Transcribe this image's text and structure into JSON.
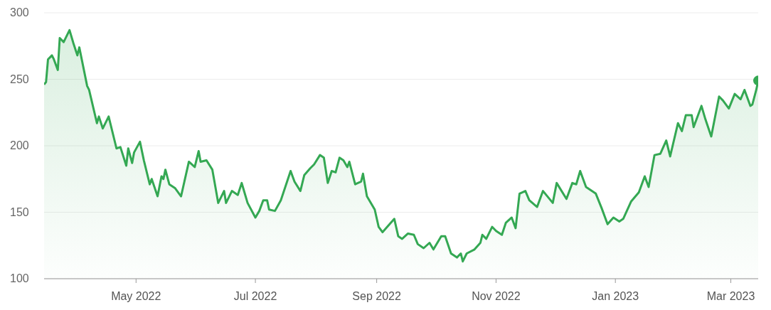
{
  "chart_data": {
    "type": "area",
    "xlim": [
      "2022-03-15",
      "2023-03-15"
    ],
    "xticks": [
      {
        "value": "2022-05-01",
        "label": "May 2022"
      },
      {
        "value": "2022-07-01",
        "label": "Jul 2022"
      },
      {
        "value": "2022-09-01",
        "label": "Sep 2022"
      },
      {
        "value": "2022-11-01",
        "label": "Nov 2022"
      },
      {
        "value": "2023-01-01",
        "label": "Jan 2023"
      },
      {
        "value": "2023-03-01",
        "label": "Mar 2023"
      }
    ],
    "ylim": [
      100,
      300
    ],
    "yticks": [
      100,
      150,
      200,
      250,
      300
    ],
    "grid": "y",
    "series": [
      {
        "color": "#34a853",
        "x": [
          "2022-03-15",
          "2022-03-16",
          "2022-03-17",
          "2022-03-19",
          "2022-03-20",
          "2022-03-22",
          "2022-03-23",
          "2022-03-25",
          "2022-03-28",
          "2022-03-30",
          "2022-04-01",
          "2022-04-02",
          "2022-04-06",
          "2022-04-07",
          "2022-04-11",
          "2022-04-12",
          "2022-04-14",
          "2022-04-17",
          "2022-04-21",
          "2022-04-23",
          "2022-04-26",
          "2022-04-27",
          "2022-04-29",
          "2022-04-30",
          "2022-05-03",
          "2022-05-05",
          "2022-05-08",
          "2022-05-09",
          "2022-05-12",
          "2022-05-14",
          "2022-05-15",
          "2022-05-16",
          "2022-05-18",
          "2022-05-21",
          "2022-05-24",
          "2022-05-28",
          "2022-05-31",
          "2022-06-02",
          "2022-06-03",
          "2022-06-06",
          "2022-06-09",
          "2022-06-12",
          "2022-06-15",
          "2022-06-16",
          "2022-06-19",
          "2022-06-22",
          "2022-06-24",
          "2022-06-25",
          "2022-06-27",
          "2022-07-01",
          "2022-07-03",
          "2022-07-05",
          "2022-07-07",
          "2022-07-08",
          "2022-07-11",
          "2022-07-14",
          "2022-07-19",
          "2022-07-21",
          "2022-07-24",
          "2022-07-26",
          "2022-07-29",
          "2022-07-31",
          "2022-08-03",
          "2022-08-05",
          "2022-08-07",
          "2022-08-09",
          "2022-08-11",
          "2022-08-13",
          "2022-08-15",
          "2022-08-17",
          "2022-08-18",
          "2022-08-21",
          "2022-08-24",
          "2022-08-25",
          "2022-08-27",
          "2022-08-31",
          "2022-09-02",
          "2022-09-04",
          "2022-09-10",
          "2022-09-12",
          "2022-09-14",
          "2022-09-17",
          "2022-09-20",
          "2022-09-22",
          "2022-09-25",
          "2022-09-28",
          "2022-09-30",
          "2022-10-04",
          "2022-10-06",
          "2022-10-09",
          "2022-10-12",
          "2022-10-14",
          "2022-10-15",
          "2022-10-17",
          "2022-10-21",
          "2022-10-24",
          "2022-10-25",
          "2022-10-27",
          "2022-10-30",
          "2022-11-01",
          "2022-11-04",
          "2022-11-06",
          "2022-11-09",
          "2022-11-11",
          "2022-11-13",
          "2022-11-16",
          "2022-11-18",
          "2022-11-22",
          "2022-11-25",
          "2022-11-30",
          "2022-12-02",
          "2022-12-07",
          "2022-12-10",
          "2022-12-12",
          "2022-12-14",
          "2022-12-17",
          "2022-12-22",
          "2022-12-25",
          "2022-12-28",
          "2022-12-31",
          "2023-01-03",
          "2023-01-05",
          "2023-01-09",
          "2023-01-13",
          "2023-01-16",
          "2023-01-18",
          "2023-01-21",
          "2023-01-24",
          "2023-01-27",
          "2023-01-29",
          "2023-02-02",
          "2023-02-04",
          "2023-02-06",
          "2023-02-09",
          "2023-02-10",
          "2023-02-14",
          "2023-02-16",
          "2023-02-19",
          "2023-02-23",
          "2023-02-25",
          "2023-02-28",
          "2023-03-03",
          "2023-03-06",
          "2023-03-08",
          "2023-03-11",
          "2023-03-12",
          "2023-03-14",
          "2023-03-15"
        ],
        "values": [
          246,
          248,
          265,
          268,
          265,
          257,
          281,
          278,
          287,
          277,
          268,
          274,
          245,
          242,
          217,
          222,
          213,
          222,
          198,
          199,
          185,
          198,
          187,
          195,
          203,
          189,
          171,
          175,
          162,
          177,
          175,
          182,
          171,
          168,
          162,
          188,
          184,
          196,
          188,
          189,
          182,
          157,
          166,
          157,
          166,
          163,
          172,
          167,
          157,
          146,
          151,
          159,
          159,
          152,
          151,
          159,
          181,
          173,
          166,
          178,
          183,
          186,
          193,
          191,
          172,
          181,
          180,
          191,
          189,
          184,
          188,
          171,
          173,
          179,
          162,
          152,
          139,
          135,
          145,
          132,
          130,
          134,
          133,
          126,
          123,
          127,
          122,
          132,
          132,
          119,
          116,
          119,
          113,
          119,
          122,
          127,
          133,
          130,
          139,
          136,
          133,
          142,
          146,
          138,
          164,
          166,
          159,
          154,
          166,
          157,
          172,
          160,
          172,
          171,
          181,
          169,
          164,
          153,
          141,
          146,
          143,
          145,
          158,
          165,
          177,
          169,
          193,
          194,
          204,
          192,
          217,
          211,
          223,
          223,
          214,
          230,
          220,
          207,
          237,
          234,
          228,
          239,
          235,
          242,
          230,
          231,
          242,
          249
        ]
      },
      {
        "type": "scatter",
        "color": "#34a853",
        "x": [
          "2023-03-15"
        ],
        "values": [
          249
        ]
      }
    ]
  }
}
